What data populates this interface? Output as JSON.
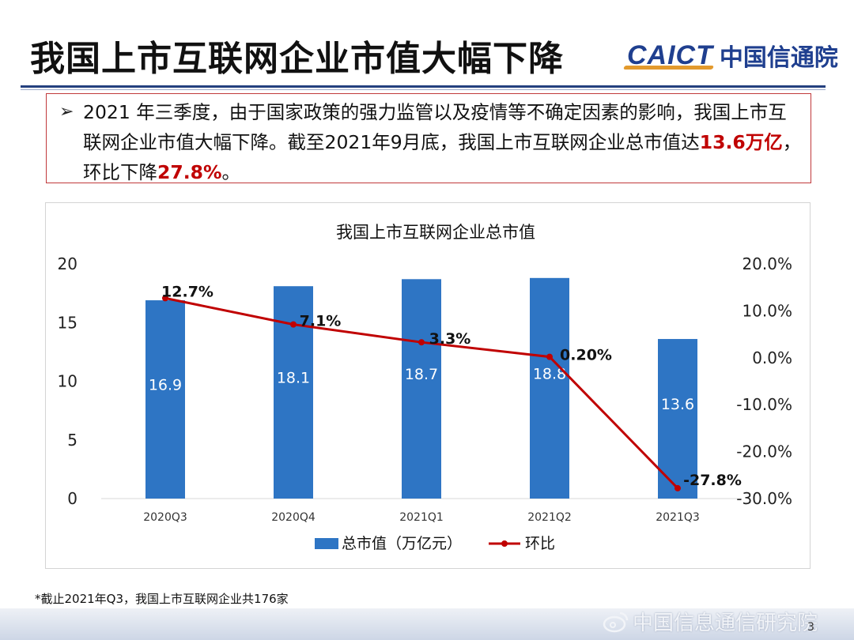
{
  "slide": {
    "title": "我国上市互联网企业市值大幅下降",
    "logo_en": "CAICT",
    "logo_cn": "中国信通院",
    "bullet_marker": "➢",
    "bullet_part1": "2021 年三季度，由于国家政策的强力监管以及疫情等不确定因素的影响，我国上市互联网企业市值大幅下降。截至2021年9月底，我国上市互联网企业总市值达",
    "bullet_hl1": "13.6万亿",
    "bullet_part2": "，环比下降",
    "bullet_hl2": "27.8%",
    "bullet_part3": "。",
    "footnote": "*截止2021年Q3，我国上市互联网企业共176家",
    "watermark": "中国信息通信研究院",
    "page_number": "3"
  },
  "colors": {
    "bar": "#2e75c4",
    "line": "#c00000",
    "title_rule": "#24407e",
    "logo_blue": "#1f3f8f",
    "logo_orange": "#e39a2d"
  },
  "chart_data": {
    "type": "bar",
    "title": "我国上市互联网企业总市值",
    "categories": [
      "2020Q3",
      "2020Q4",
      "2021Q1",
      "2021Q2",
      "2021Q3"
    ],
    "series": [
      {
        "name": "总市值（万亿元）",
        "type": "bar",
        "axis": "left",
        "values": [
          16.9,
          18.1,
          18.7,
          18.8,
          13.6
        ],
        "labels": [
          "16.9",
          "18.1",
          "18.7",
          "18.8",
          "13.6"
        ]
      },
      {
        "name": "环比",
        "type": "line",
        "axis": "right",
        "values": [
          12.7,
          7.1,
          3.3,
          0.2,
          -27.8
        ],
        "labels": [
          "12.7%",
          "7.1%",
          "3.3%",
          "0.20%",
          "-27.8%"
        ]
      }
    ],
    "y_left": {
      "min": 0,
      "max": 20,
      "ticks": [
        "0",
        "5",
        "10",
        "15",
        "20"
      ],
      "tick_values": [
        0,
        5,
        10,
        15,
        20
      ]
    },
    "y_right": {
      "min": -30,
      "max": 20,
      "ticks": [
        "-30.0%",
        "-20.0%",
        "-10.0%",
        "0.0%",
        "10.0%",
        "20.0%"
      ],
      "tick_values": [
        -30,
        -20,
        -10,
        0,
        10,
        20
      ]
    },
    "legend_position": "bottom",
    "grid": false
  }
}
